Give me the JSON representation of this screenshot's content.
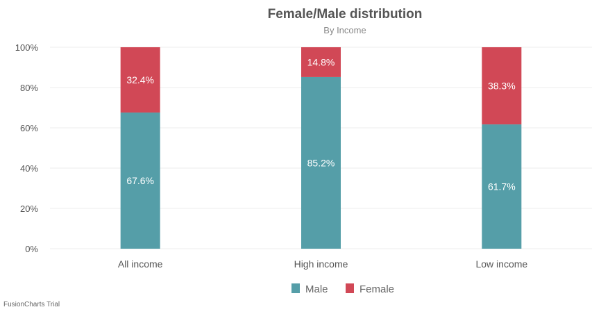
{
  "chart_data": {
    "type": "stacked-bar",
    "title": "Female/Male distribution",
    "subtitle": "By Income",
    "xlabel": "",
    "ylabel": "",
    "ylim": [
      0,
      100
    ],
    "yticks": [
      "0%",
      "20%",
      "40%",
      "60%",
      "80%",
      "100%"
    ],
    "grid": true,
    "legend_position": "bottom",
    "categories": [
      "All income",
      "High income",
      "Low income"
    ],
    "series": [
      {
        "name": "Male",
        "color": "#559EA8",
        "values": [
          67.6,
          85.2,
          61.7
        ],
        "labels": [
          "67.6%",
          "85.2%",
          "61.7%"
        ]
      },
      {
        "name": "Female",
        "color": "#D14856",
        "values": [
          32.4,
          14.8,
          38.3
        ],
        "labels": [
          "32.4%",
          "14.8%",
          "38.3%"
        ]
      }
    ]
  },
  "watermark": "FusionCharts Trial"
}
